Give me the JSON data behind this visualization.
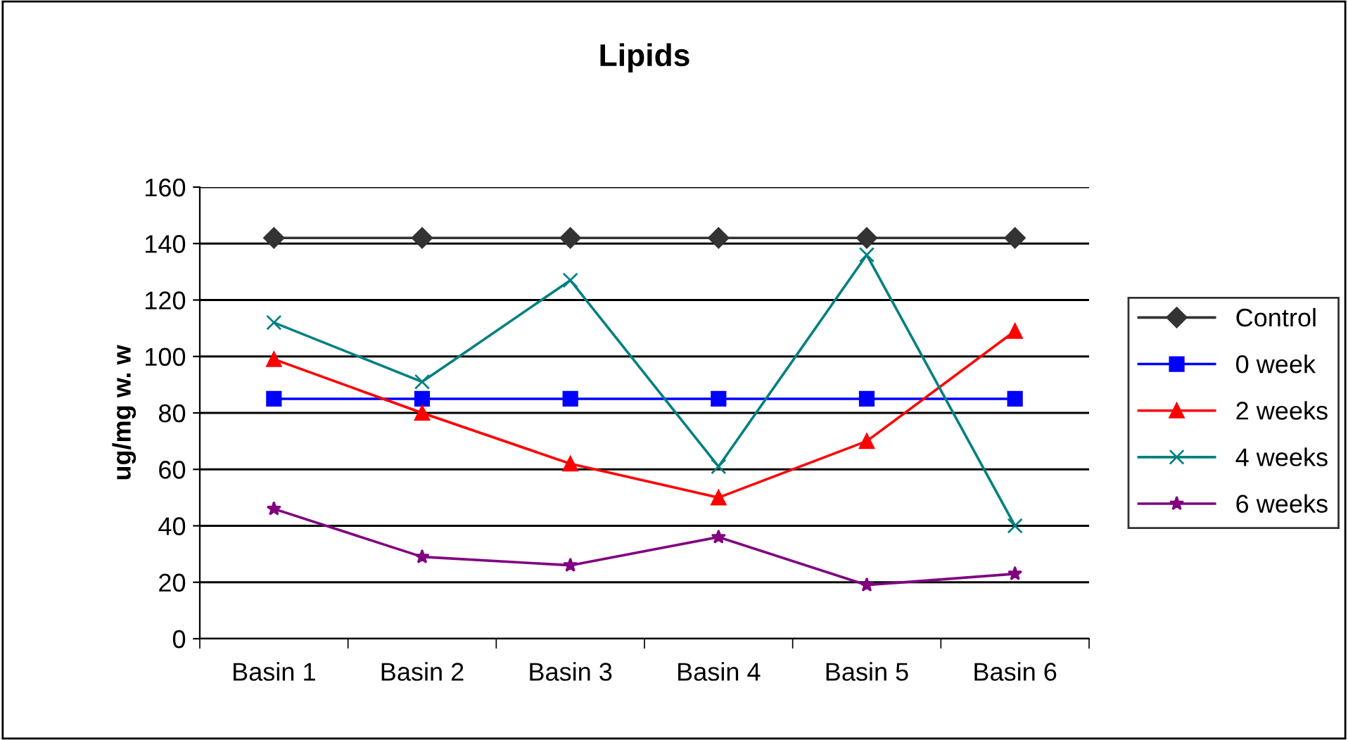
{
  "chart_data": {
    "type": "line",
    "title": "Lipids",
    "ylabel": "ug/mg w. w",
    "categories": [
      "Basin 1",
      "Basin 2",
      "Basin 3",
      "Basin 4",
      "Basin 5",
      "Basin 6"
    ],
    "ylim": [
      0,
      160
    ],
    "yticks": [
      0,
      20,
      40,
      60,
      80,
      100,
      120,
      140,
      160
    ],
    "grid": "y",
    "legend": "right",
    "series": [
      {
        "name": "Control",
        "color": "#333333",
        "marker": "diamond",
        "values": [
          142,
          142,
          142,
          142,
          142,
          142
        ]
      },
      {
        "name": "0 week",
        "color": "#0000ff",
        "marker": "square",
        "values": [
          85,
          85,
          85,
          85,
          85,
          85
        ]
      },
      {
        "name": "2 weeks",
        "color": "#ff0000",
        "marker": "triangle",
        "values": [
          99,
          80,
          62,
          50,
          70,
          109
        ]
      },
      {
        "name": "4 weeks",
        "color": "#008080",
        "marker": "cross",
        "values": [
          112,
          91,
          127,
          61,
          136,
          40
        ]
      },
      {
        "name": "6 weeks",
        "color": "#800080",
        "marker": "star",
        "values": [
          46,
          29,
          26,
          36,
          19,
          23
        ]
      }
    ]
  }
}
